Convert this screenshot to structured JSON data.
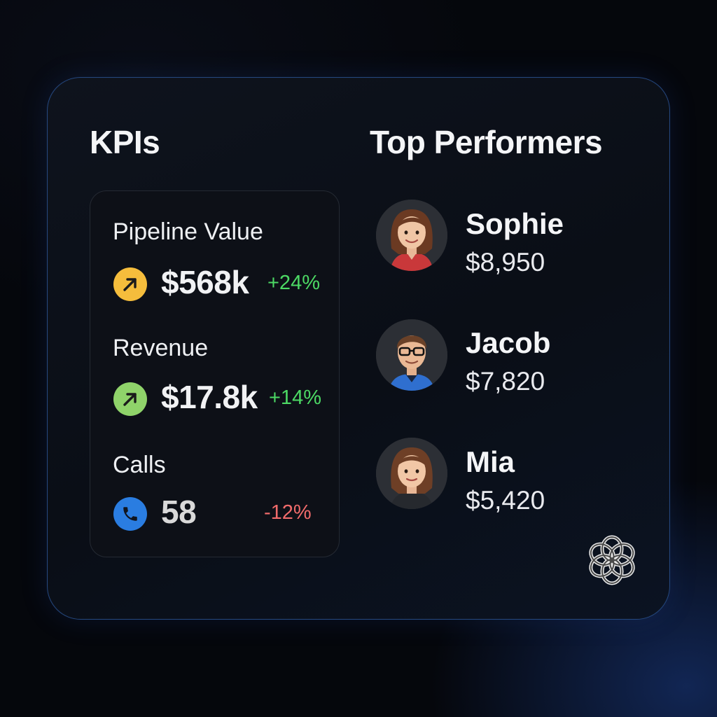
{
  "kpis": {
    "title": "KPIs",
    "items": [
      {
        "label": "Pipeline Value",
        "value": "$568k",
        "delta": "+24%",
        "trend": "up",
        "icon": "arrow-up-right-icon",
        "icon_color": "#f5bd3c"
      },
      {
        "label": "Revenue",
        "value": "$17.8k",
        "delta": "+14%",
        "trend": "up",
        "icon": "arrow-up-right-icon",
        "icon_color": "#8fd36a"
      },
      {
        "label": "Calls",
        "value": "58",
        "delta": "-12%",
        "trend": "down",
        "icon": "phone-icon",
        "icon_color": "#2a7de1"
      }
    ]
  },
  "top_performers": {
    "title": "Top Performers",
    "people": [
      {
        "name": "Sophie",
        "amount": "$8,950"
      },
      {
        "name": "Jacob",
        "amount": "$7,820"
      },
      {
        "name": "Mia",
        "amount": "$5,420"
      }
    ]
  },
  "colors": {
    "accent_border": "#24477f",
    "positive": "#4cd964",
    "negative": "#f06b6b"
  }
}
